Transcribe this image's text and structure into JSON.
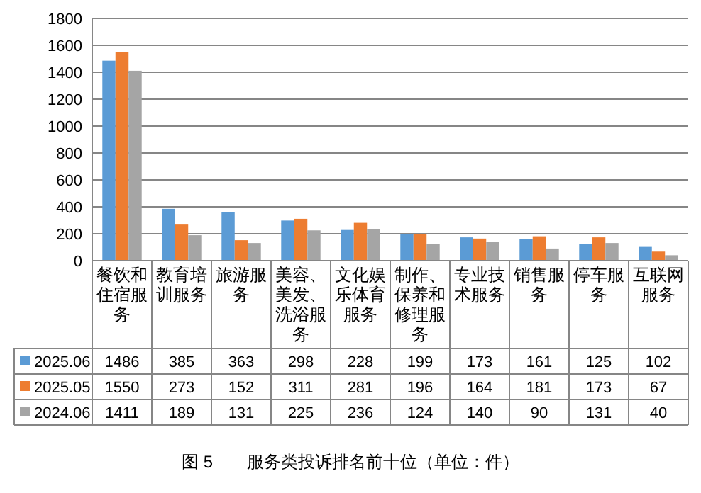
{
  "chart_data": {
    "type": "bar",
    "title": "图 5　　服务类投诉排名前十位（单位：件）",
    "categories": [
      "餐饮和住宿服务",
      "教育培训服务",
      "旅游服务",
      "美容、美发、洗浴服务",
      "文化娱乐体育服务",
      "制作、保养和修理服务",
      "专业技术服务",
      "销售服务",
      "停车服务",
      "互联网服务"
    ],
    "series": [
      {
        "name": "2025.06",
        "color": "#5b9bd5",
        "values": [
          1486,
          385,
          363,
          298,
          228,
          199,
          173,
          161,
          125,
          102
        ]
      },
      {
        "name": "2025.05",
        "color": "#ed7d31",
        "values": [
          1550,
          273,
          152,
          311,
          281,
          196,
          164,
          181,
          173,
          67
        ]
      },
      {
        "name": "2024.06",
        "color": "#a5a5a5",
        "values": [
          1411,
          189,
          131,
          225,
          236,
          124,
          140,
          90,
          131,
          40
        ]
      }
    ],
    "ylim": [
      0,
      1800
    ],
    "yticks": [
      0,
      200,
      400,
      600,
      800,
      1000,
      1200,
      1400,
      1600,
      1800
    ],
    "grid": "y",
    "legend": "bottom",
    "data_labels": true
  }
}
